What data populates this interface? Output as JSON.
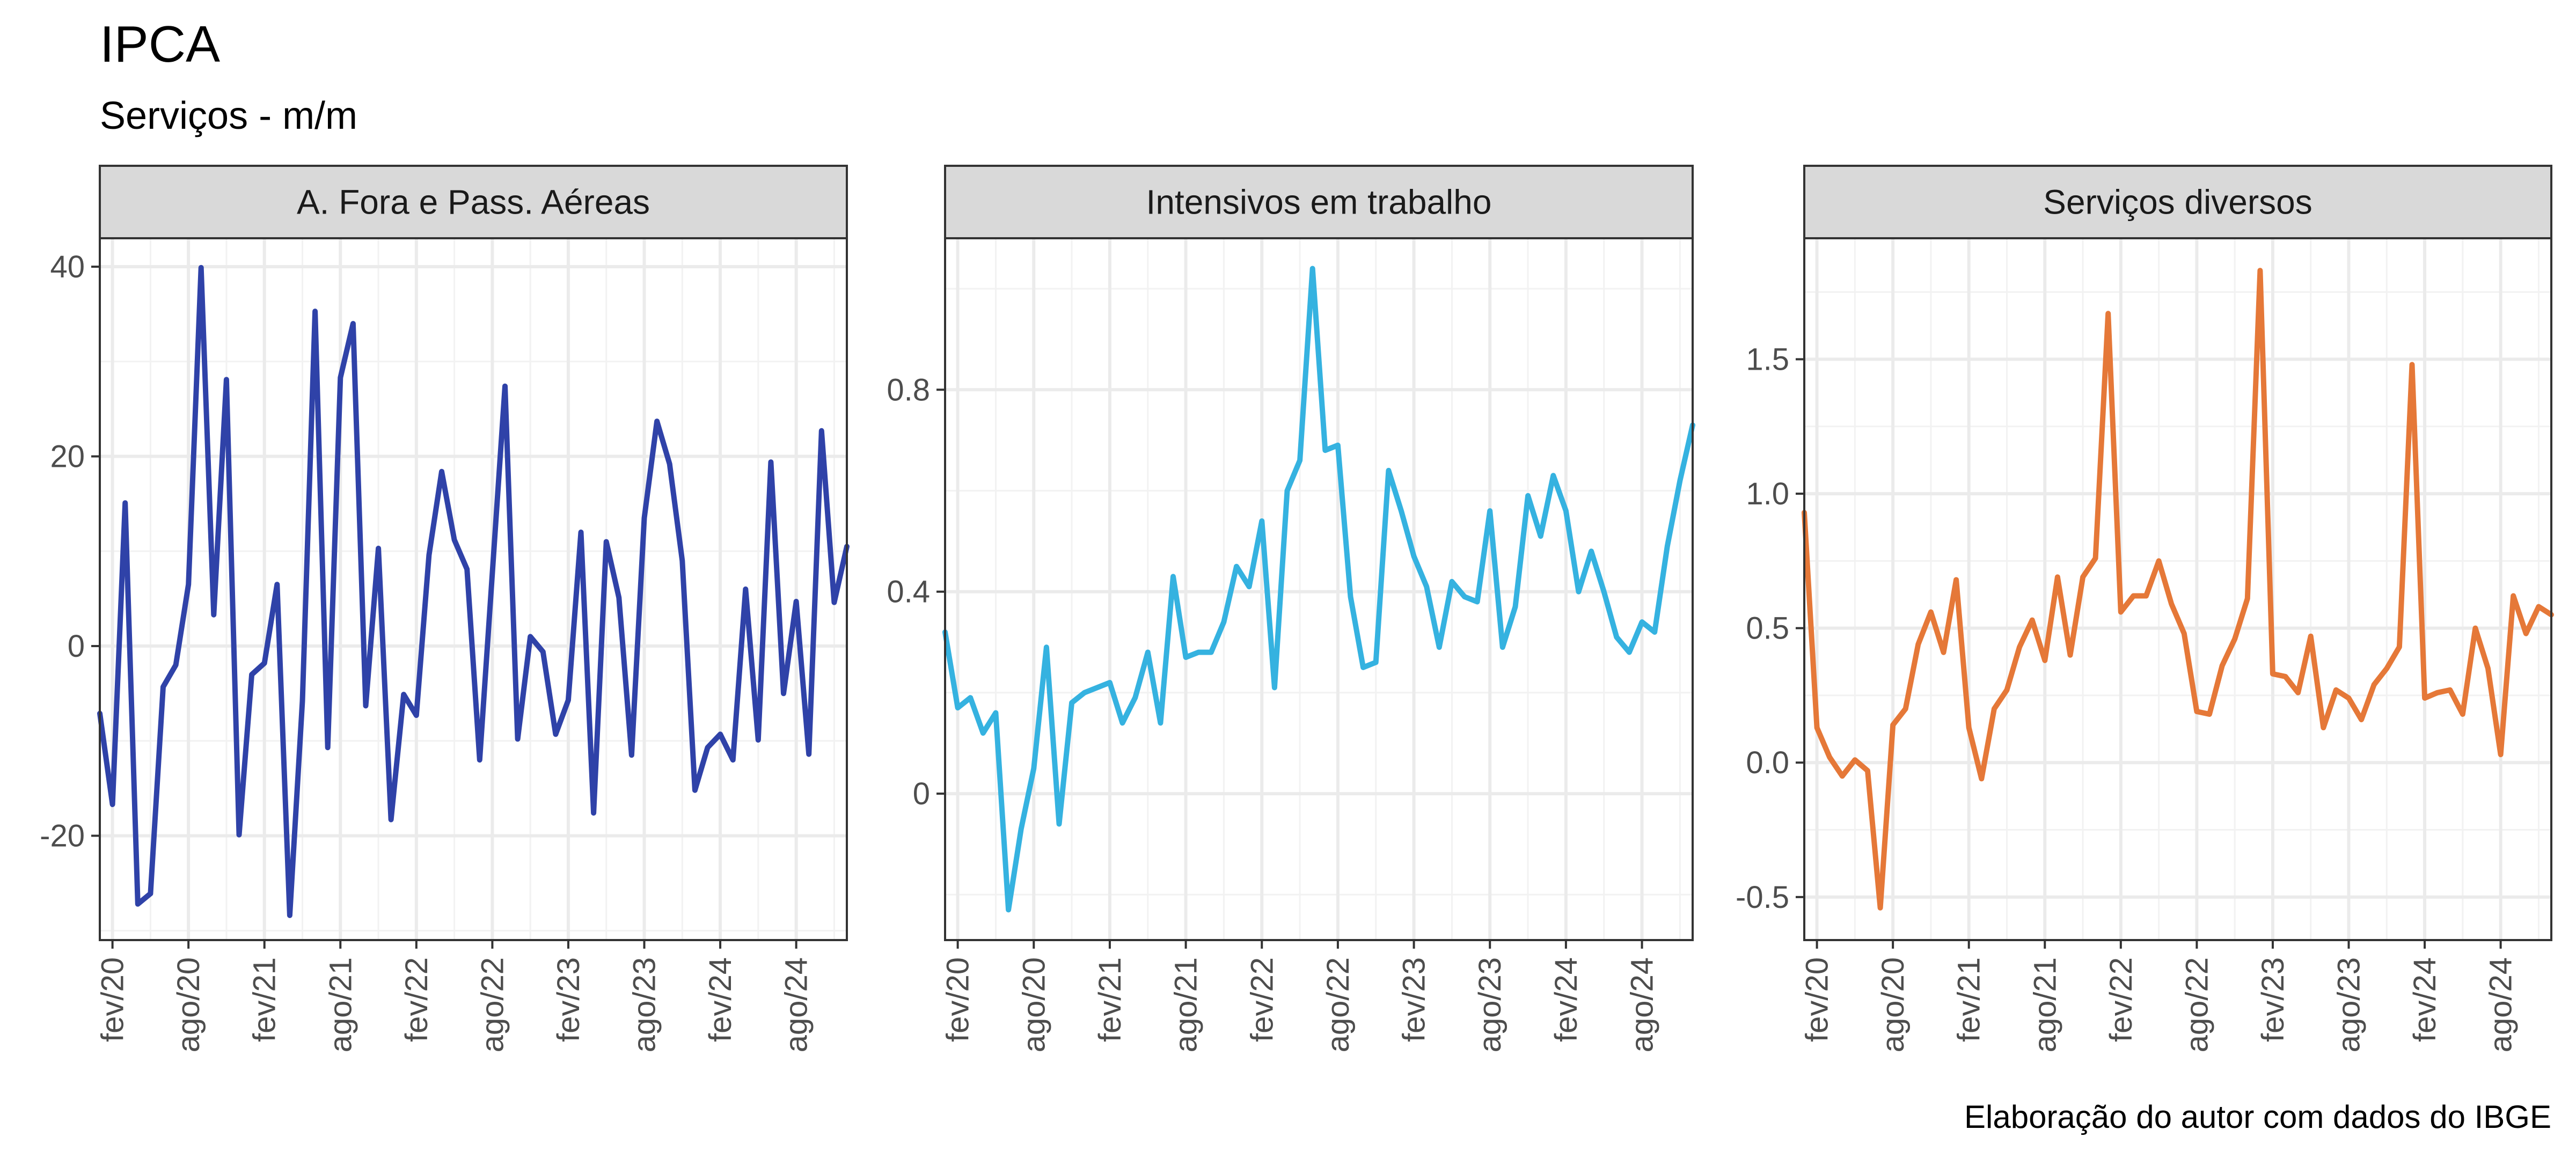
{
  "header": {
    "title": "IPCA",
    "subtitle": "Serviços - m/m",
    "caption": "Elaboração do autor com dados do IBGE"
  },
  "chart_data": [
    {
      "type": "line",
      "facet": "A. Fora e Pass. Aéreas",
      "color": "#2f42a8",
      "x_start": "2020-01",
      "x_end": "2024-12",
      "x_ticks": [
        "fev/20",
        "ago/20",
        "fev/21",
        "ago/21",
        "fev/22",
        "ago/22",
        "fev/23",
        "ago/23",
        "fev/24",
        "ago/24"
      ],
      "x_tick_months": [
        "2020-02",
        "2020-08",
        "2021-02",
        "2021-08",
        "2022-02",
        "2022-08",
        "2023-02",
        "2023-08",
        "2024-02",
        "2024-08"
      ],
      "y_ticks": [
        -20,
        0,
        20,
        40
      ],
      "ylim": [
        -31,
        43
      ],
      "values": [
        -7.1,
        -16.7,
        15.1,
        -27.2,
        -26.1,
        -4.3,
        -2.0,
        6.5,
        39.9,
        3.3,
        28.1,
        -19.9,
        -3.0,
        -1.8,
        6.5,
        -28.4,
        -5.8,
        35.3,
        -10.7,
        28.3,
        34.0,
        -6.3,
        10.3,
        -18.3,
        -5.1,
        -7.3,
        9.6,
        18.4,
        11.2,
        8.1,
        -12.0,
        7.7,
        27.4,
        -9.8,
        1.0,
        -0.6,
        -9.3,
        -5.7,
        12.0,
        -17.6,
        11.0,
        5.1,
        -11.5,
        13.5,
        23.7,
        19.2,
        9.0,
        -15.2,
        -10.7,
        -9.3,
        -12.0,
        6.0,
        -9.9,
        19.4,
        -5.0,
        4.7,
        -11.4,
        22.7,
        4.6,
        10.5
      ]
    },
    {
      "type": "line",
      "facet": "Intensivos em trabalho",
      "color": "#35b2e0",
      "x_start": "2020-01",
      "x_end": "2024-12",
      "x_ticks": [
        "fev/20",
        "ago/20",
        "fev/21",
        "ago/21",
        "fev/22",
        "ago/22",
        "fev/23",
        "ago/23",
        "fev/24",
        "ago/24"
      ],
      "x_tick_months": [
        "2020-02",
        "2020-08",
        "2021-02",
        "2021-08",
        "2022-02",
        "2022-08",
        "2023-02",
        "2023-08",
        "2024-02",
        "2024-08"
      ],
      "y_ticks": [
        0.0,
        0.4,
        0.8
      ],
      "ylim": [
        -0.29,
        1.1
      ],
      "values": [
        0.32,
        0.17,
        0.19,
        0.12,
        0.16,
        -0.23,
        -0.07,
        0.05,
        0.29,
        -0.06,
        0.18,
        0.2,
        0.21,
        0.22,
        0.14,
        0.19,
        0.28,
        0.14,
        0.43,
        0.27,
        0.28,
        0.28,
        0.34,
        0.45,
        0.41,
        0.54,
        0.21,
        0.6,
        0.66,
        1.04,
        0.68,
        0.69,
        0.39,
        0.25,
        0.26,
        0.64,
        0.56,
        0.47,
        0.41,
        0.29,
        0.42,
        0.39,
        0.38,
        0.56,
        0.29,
        0.37,
        0.59,
        0.51,
        0.63,
        0.56,
        0.4,
        0.48,
        0.4,
        0.31,
        0.28,
        0.34,
        0.32,
        0.49,
        0.62,
        0.73
      ]
    },
    {
      "type": "line",
      "facet": "Serviços diversos",
      "color": "#e57838",
      "x_start": "2020-01",
      "x_end": "2024-12",
      "x_ticks": [
        "fev/20",
        "ago/20",
        "fev/21",
        "ago/21",
        "fev/22",
        "ago/22",
        "fev/23",
        "ago/23",
        "fev/24",
        "ago/24"
      ],
      "x_tick_months": [
        "2020-02",
        "2020-08",
        "2021-02",
        "2021-08",
        "2022-02",
        "2022-08",
        "2023-02",
        "2023-08",
        "2024-02",
        "2024-08"
      ],
      "y_ticks": [
        -0.5,
        0.0,
        0.5,
        1.0,
        1.5
      ],
      "y_tick_labels": [
        "-0.5",
        "0.0",
        "0.5",
        "1.0",
        "1.5"
      ],
      "ylim": [
        -0.66,
        1.95
      ],
      "values": [
        0.93,
        0.13,
        0.02,
        -0.05,
        0.01,
        -0.03,
        -0.54,
        0.14,
        0.2,
        0.44,
        0.56,
        0.41,
        0.68,
        0.13,
        -0.06,
        0.2,
        0.27,
        0.43,
        0.53,
        0.38,
        0.69,
        0.4,
        0.69,
        0.76,
        1.67,
        0.56,
        0.62,
        0.62,
        0.75,
        0.59,
        0.48,
        0.19,
        0.18,
        0.36,
        0.46,
        0.61,
        1.83,
        0.33,
        0.32,
        0.26,
        0.47,
        0.13,
        0.27,
        0.24,
        0.16,
        0.29,
        0.35,
        0.43,
        1.48,
        0.24,
        0.26,
        0.27,
        0.18,
        0.5,
        0.35,
        0.03,
        0.62,
        0.48,
        0.58,
        0.55
      ]
    }
  ]
}
